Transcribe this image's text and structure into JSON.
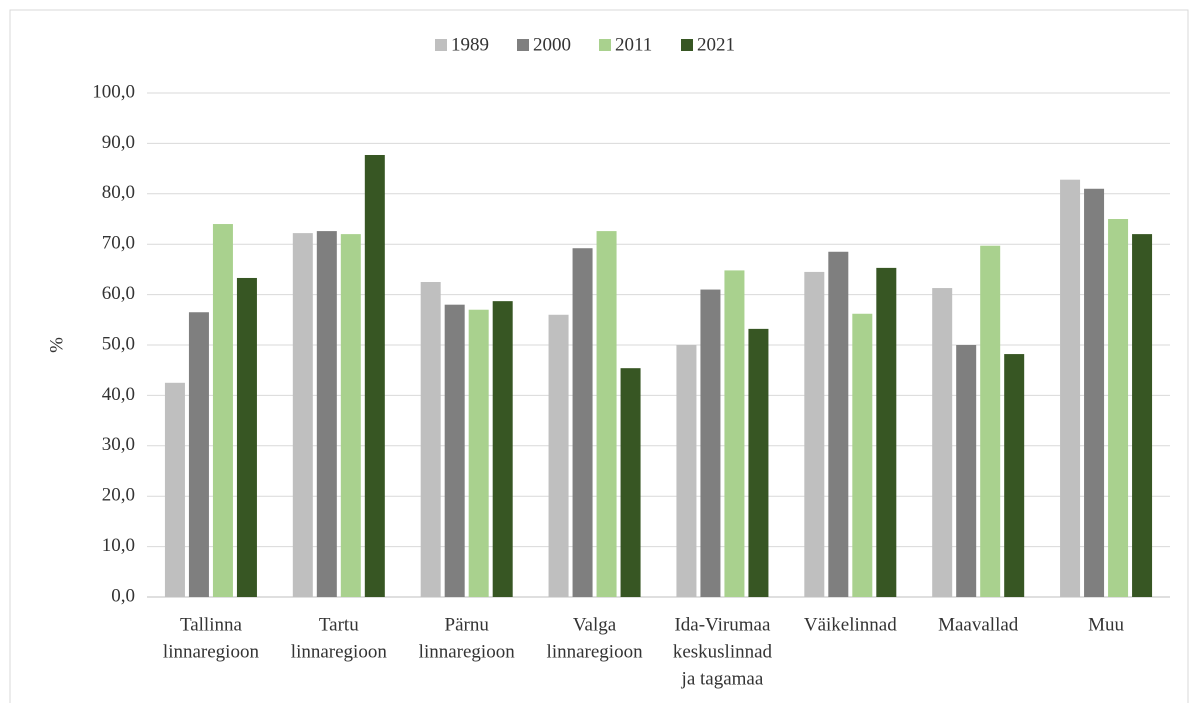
{
  "chart_data": {
    "type": "bar",
    "y_label": "%",
    "categories": [
      [
        "Tallinna",
        "linnaregioon"
      ],
      [
        "Tartu",
        "linnaregioon"
      ],
      [
        "Pärnu",
        "linnaregioon"
      ],
      [
        "Valga",
        "linnaregioon"
      ],
      [
        "Ida-Virumaa",
        "keskuslinnad",
        "ja tagamaa"
      ],
      [
        "Väikelinnad"
      ],
      [
        "Maavallad"
      ],
      [
        "Muu"
      ]
    ],
    "series": [
      {
        "name": "1989",
        "color": "#bfbfbf",
        "values": [
          42.5,
          72.2,
          62.5,
          56.0,
          50.0,
          64.5,
          61.3,
          82.8
        ]
      },
      {
        "name": "2000",
        "color": "#7f7f7f",
        "values": [
          56.5,
          72.6,
          58.0,
          69.2,
          61.0,
          68.5,
          50.0,
          81.0
        ]
      },
      {
        "name": "2011",
        "color": "#a9d18e",
        "values": [
          74.0,
          72.0,
          57.0,
          72.6,
          64.8,
          56.2,
          69.7,
          75.0
        ]
      },
      {
        "name": "2021",
        "color": "#375623",
        "values": [
          63.3,
          87.7,
          58.7,
          45.4,
          53.2,
          65.3,
          48.2,
          72.0
        ]
      }
    ],
    "ylim": [
      0,
      100
    ],
    "yticks": [
      {
        "value": 0,
        "label": "0,0"
      },
      {
        "value": 10,
        "label": "10,0"
      },
      {
        "value": 20,
        "label": "20,0"
      },
      {
        "value": 30,
        "label": "30,0"
      },
      {
        "value": 40,
        "label": "40,0"
      },
      {
        "value": 50,
        "label": "50,0"
      },
      {
        "value": 60,
        "label": "60,0"
      },
      {
        "value": 70,
        "label": "70,0"
      },
      {
        "value": 80,
        "label": "80,0"
      },
      {
        "value": 90,
        "label": "90,0"
      },
      {
        "value": 100,
        "label": "100,0"
      }
    ],
    "grid": true,
    "legend": "top"
  }
}
